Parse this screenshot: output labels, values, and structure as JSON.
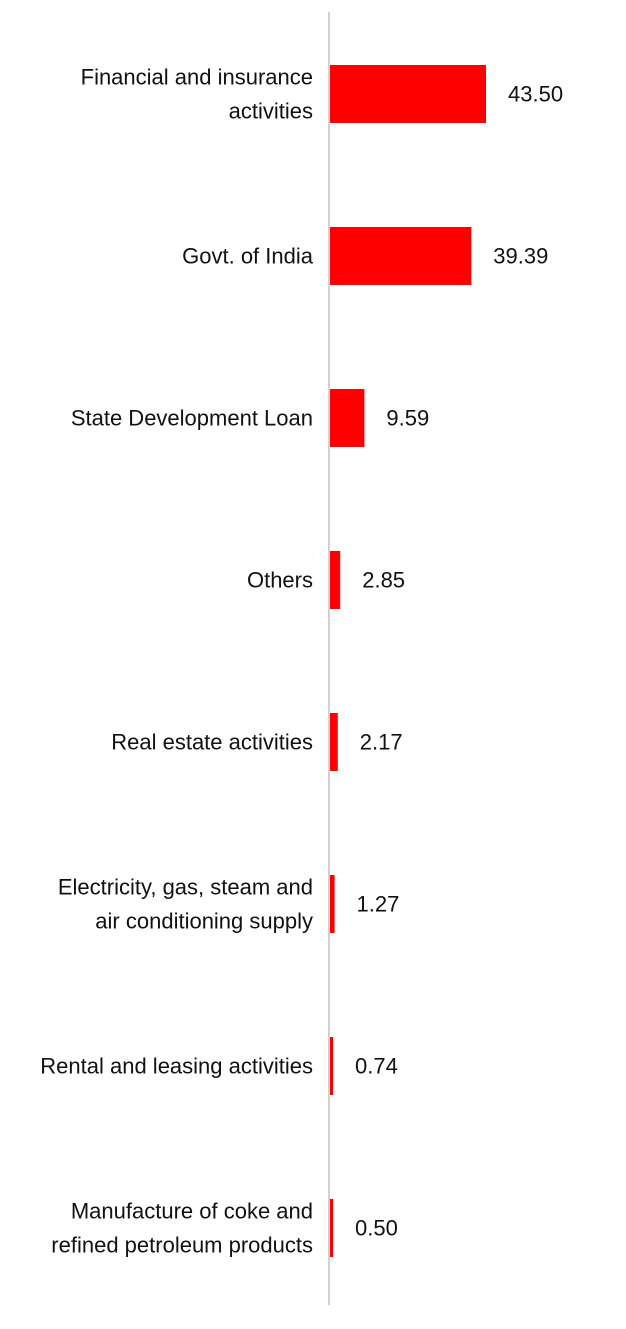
{
  "chart_data": {
    "type": "bar",
    "orientation": "horizontal",
    "categories": [
      [
        "Financial and insurance",
        "activities"
      ],
      [
        "Govt. of India"
      ],
      [
        "State Development Loan"
      ],
      [
        "Others"
      ],
      [
        "Real estate activities"
      ],
      [
        "Electricity, gas, steam and",
        "air conditioning supply"
      ],
      [
        "Rental and leasing activities"
      ],
      [
        "Manufacture of coke and",
        "refined petroleum products"
      ]
    ],
    "values": [
      43.5,
      39.39,
      9.59,
      2.85,
      2.17,
      1.27,
      0.74,
      0.5
    ],
    "value_labels": [
      "43.50",
      "39.39",
      "9.59",
      "2.85",
      "2.17",
      "1.27",
      "0.74",
      "0.50"
    ],
    "bar_color": "#ff0000",
    "axis_color": "#d0d0d0",
    "grid": false,
    "legend": "none"
  }
}
